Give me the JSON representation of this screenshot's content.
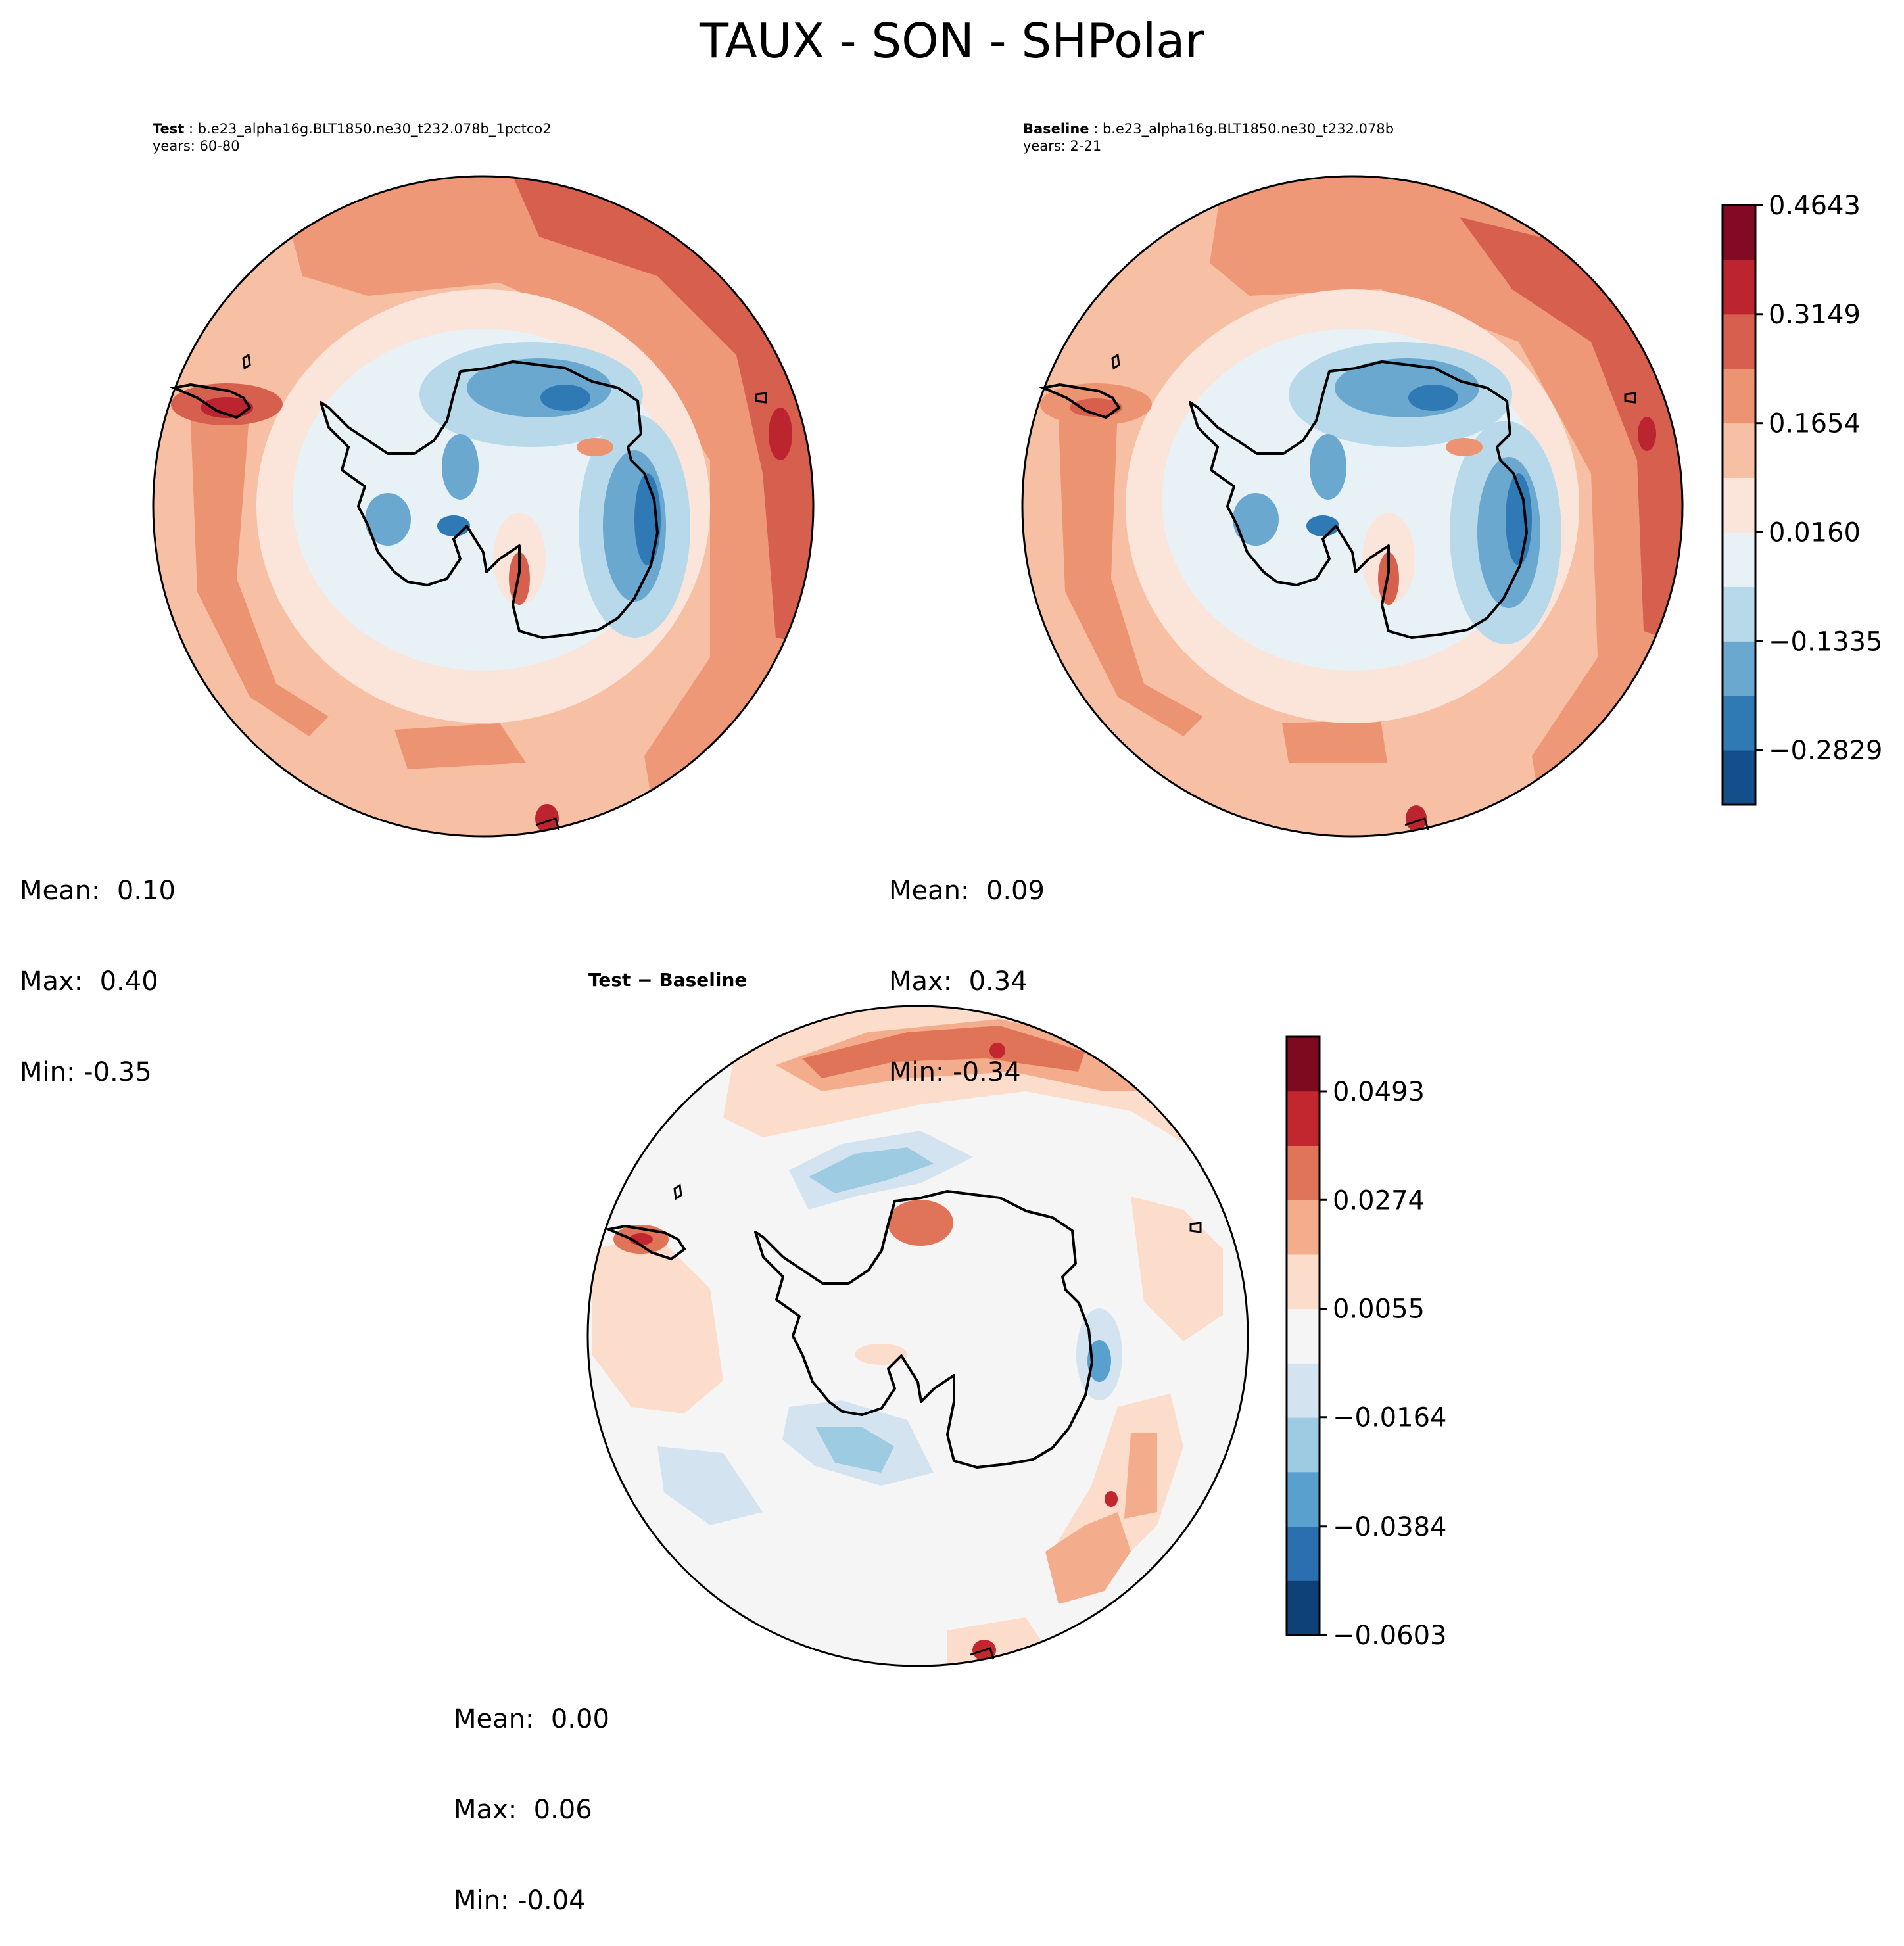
{
  "figure": {
    "title": "TAUX - SON - SHPolar"
  },
  "panels": [
    {
      "id": "test",
      "label_bold": "Test",
      "label_sep": " : ",
      "case": "b.e23_alpha16g.BLT1850.ne30_t232.078b_1pctco2",
      "years": "years: 60-80",
      "stats": {
        "mean": "Mean:  0.10",
        "max": "Max:  0.40",
        "min": "Min: -0.35"
      }
    },
    {
      "id": "baseline",
      "label_bold": "Baseline",
      "label_sep": " : ",
      "case": "b.e23_alpha16g.BLT1850.ne30_t232.078b",
      "years": "years: 2-21",
      "stats": {
        "mean": "Mean:  0.09",
        "max": "Max:  0.34",
        "min": "Min: -0.34"
      }
    },
    {
      "id": "difference",
      "title": "Test − Baseline",
      "stats": {
        "mean": "Mean:  0.00",
        "max": "Max:  0.06",
        "min": "Min: -0.04"
      }
    }
  ],
  "colorbars": {
    "top": {
      "colors": [
        "#154f8b",
        "#2f79b5",
        "#6aa8d0",
        "#b8d9e9",
        "#e8f1f6",
        "#fbe5da",
        "#f7c0a4",
        "#ec9372",
        "#d6604d",
        "#bc2430",
        "#820a24"
      ],
      "tick_labels": [
        "−0.2829",
        "−0.1335",
        "0.0160",
        "0.1654",
        "0.3149",
        "0.4643"
      ],
      "tick_values": [
        -0.2829,
        -0.1335,
        0.016,
        0.1654,
        0.3149,
        0.4643
      ],
      "range": [
        -0.3575,
        0.4643
      ]
    },
    "bottom": {
      "colors": [
        "#0e4178",
        "#2c6fb0",
        "#5aa0cf",
        "#9dcbe2",
        "#d3e4f0",
        "#f5f5f5",
        "#fcdccb",
        "#f3ad8c",
        "#e07458",
        "#c2262e",
        "#7e0a1f"
      ],
      "tick_labels": [
        "−0.0603",
        "−0.0384",
        "−0.0164",
        "0.0055",
        "0.0274",
        "0.0493"
      ],
      "tick_values": [
        -0.0603,
        -0.0384,
        -0.0164,
        0.0055,
        0.0274,
        0.0493
      ],
      "range": [
        -0.0603,
        0.0603
      ]
    }
  }
}
